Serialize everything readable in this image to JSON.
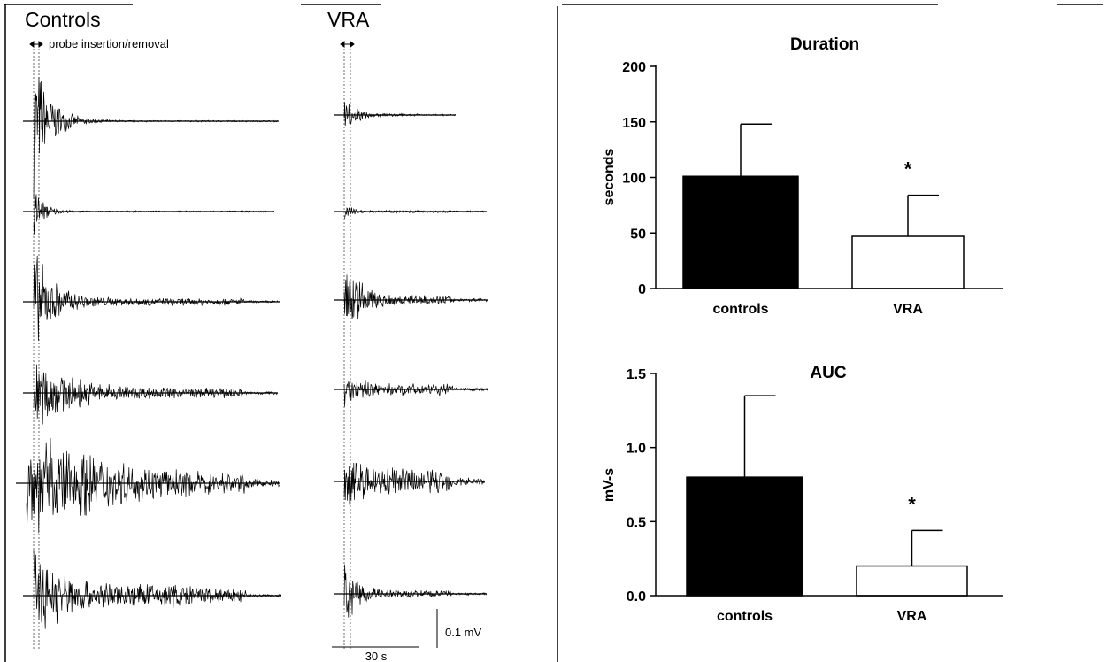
{
  "traces_panel": {
    "group_labels": [
      "Controls",
      "VRA"
    ],
    "probe_label": "probe insertion/removal",
    "scale_bar_voltage": "0.1 mV",
    "scale_bar_time": "30 s"
  },
  "chart_data": [
    {
      "type": "bar",
      "title": "Duration",
      "ylabel": "seconds",
      "xlabel": "",
      "categories": [
        "controls",
        "VRA"
      ],
      "values": [
        101,
        47
      ],
      "error": [
        47,
        37
      ],
      "significance": [
        "",
        "*"
      ],
      "ylim": [
        0,
        200
      ],
      "yticks": [
        0,
        50,
        100,
        150,
        200
      ],
      "ytick_labels": [
        "0",
        "50",
        "100",
        "150",
        "200"
      ],
      "bar_colors": [
        "#000000",
        "#ffffff"
      ],
      "grid": false
    },
    {
      "type": "bar",
      "title": "AUC",
      "ylabel": "mV-s",
      "xlabel": "",
      "categories": [
        "controls",
        "VRA"
      ],
      "values": [
        0.8,
        0.2
      ],
      "error": [
        0.55,
        0.24
      ],
      "significance": [
        "",
        "*"
      ],
      "ylim": [
        0,
        1.5
      ],
      "yticks": [
        0,
        0.5,
        1.0,
        1.5
      ],
      "ytick_labels": [
        "0.0",
        "0.5",
        "1.0",
        "1.5"
      ],
      "bar_colors": [
        "#000000",
        "#ffffff"
      ],
      "grid": false
    }
  ]
}
